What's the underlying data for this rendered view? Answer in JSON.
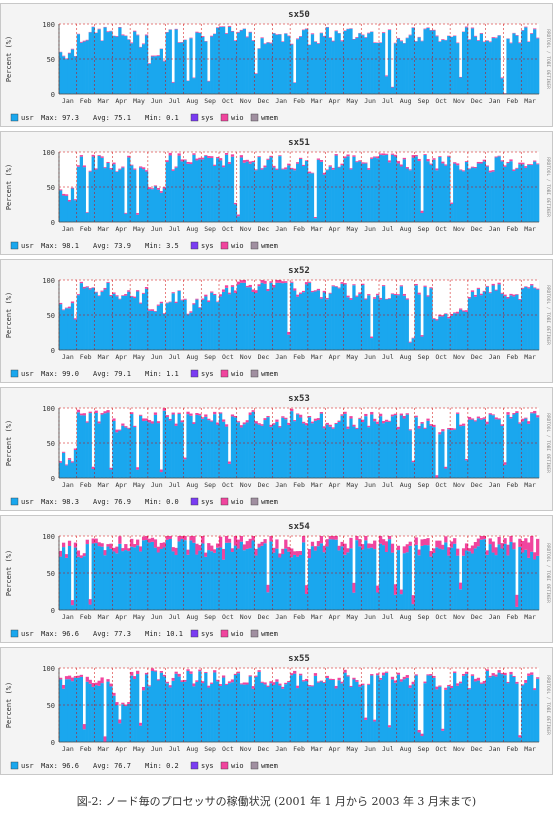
{
  "caption": "図-2: ノード毎のプロセッサの稼働状況 (2001 年 1 月から 2003 年 3 月末まで)",
  "colors": {
    "usr": "#1aa7ee",
    "sys": "#7a3cf2",
    "wio": "#f0459e",
    "wmem": "#a08fa0",
    "grid": "#c0c0c0",
    "ref": "#d00000"
  },
  "icons": {
    "rrdtool_tag": "RRDTOOL / TOBI OETIKER"
  },
  "chart_data": [
    {
      "type": "area",
      "title": "sx50",
      "ylabel": "Percent (%)",
      "ylim": [
        0,
        100
      ],
      "yticks": [
        0,
        50,
        100
      ],
      "months": [
        "Jan",
        "Feb",
        "Mar",
        "Apr",
        "May",
        "Jun",
        "Jul",
        "Aug",
        "Sep",
        "Oct",
        "Nov",
        "Dec",
        "Jan",
        "Feb",
        "Mar",
        "Apr",
        "May",
        "Jun",
        "Jul",
        "Aug",
        "Sep",
        "Oct",
        "Nov",
        "Dec",
        "Jan",
        "Feb",
        "Mar"
      ],
      "usr_monthly": [
        60,
        84,
        86,
        84,
        78,
        55,
        84,
        82,
        85,
        86,
        84,
        76,
        85,
        82,
        80,
        84,
        84,
        85,
        83,
        84,
        85,
        84,
        84,
        84,
        86,
        84,
        86
      ],
      "wio_monthly": [
        1,
        1,
        1,
        1,
        1,
        1,
        1,
        1,
        1,
        1,
        1,
        1,
        1,
        1,
        1,
        1,
        1,
        1,
        1,
        1,
        1,
        1,
        1,
        1,
        1,
        1,
        1
      ],
      "legend": [
        {
          "key": "usr",
          "label": "usr"
        },
        {
          "key": "sys",
          "label": "sys"
        },
        {
          "key": "wio",
          "label": "wio"
        },
        {
          "key": "wmem",
          "label": "wmem"
        }
      ],
      "stats": {
        "max": "Max: 97.3",
        "avg": "Avg: 75.1",
        "min": "Min: 0.1"
      }
    },
    {
      "type": "area",
      "title": "sx51",
      "ylabel": "Percent (%)",
      "ylim": [
        0,
        100
      ],
      "yticks": [
        0,
        50,
        100
      ],
      "months": [
        "Jan",
        "Feb",
        "Mar",
        "Apr",
        "May",
        "Jun",
        "Jul",
        "Aug",
        "Sep",
        "Oct",
        "Nov",
        "Dec",
        "Jan",
        "Feb",
        "Mar",
        "Apr",
        "May",
        "Jun",
        "Jul",
        "Aug",
        "Sep",
        "Oct",
        "Nov",
        "Dec",
        "Jan",
        "Feb",
        "Mar"
      ],
      "usr_monthly": [
        40,
        82,
        84,
        82,
        80,
        50,
        85,
        86,
        88,
        89,
        87,
        82,
        84,
        82,
        78,
        84,
        84,
        85,
        86,
        85,
        86,
        84,
        83,
        82,
        82,
        80,
        84
      ],
      "wio_monthly": [
        2,
        2,
        2,
        2,
        2,
        2,
        3,
        3,
        3,
        3,
        3,
        2,
        2,
        2,
        2,
        2,
        2,
        2,
        3,
        3,
        3,
        2,
        2,
        2,
        2,
        2,
        2
      ],
      "legend": [
        {
          "key": "usr",
          "label": "usr"
        },
        {
          "key": "sys",
          "label": "sys"
        },
        {
          "key": "wio",
          "label": "wio"
        },
        {
          "key": "wmem",
          "label": "wmem"
        }
      ],
      "stats": {
        "max": "Max: 98.1",
        "avg": "Avg: 73.9",
        "min": "Min: 3.5"
      }
    },
    {
      "type": "area",
      "title": "sx52",
      "ylabel": "Percent (%)",
      "ylim": [
        0,
        100
      ],
      "yticks": [
        0,
        50,
        100
      ],
      "months": [
        "Jan",
        "Feb",
        "Mar",
        "Apr",
        "May",
        "Jun",
        "Jul",
        "Aug",
        "Sep",
        "Oct",
        "Nov",
        "Dec",
        "Jan",
        "Feb",
        "Mar",
        "Apr",
        "May",
        "Jun",
        "Jul",
        "Aug",
        "Sep",
        "Oct",
        "Nov",
        "Dec",
        "Jan",
        "Feb",
        "Mar"
      ],
      "usr_monthly": [
        55,
        86,
        86,
        82,
        78,
        60,
        75,
        62,
        70,
        85,
        90,
        92,
        92,
        88,
        85,
        84,
        82,
        84,
        83,
        82,
        84,
        40,
        50,
        82,
        84,
        82,
        82
      ],
      "wio_monthly": [
        2,
        2,
        2,
        2,
        2,
        2,
        2,
        2,
        2,
        3,
        4,
        4,
        4,
        3,
        2,
        2,
        2,
        2,
        2,
        2,
        2,
        2,
        2,
        2,
        2,
        2,
        2
      ],
      "legend": [
        {
          "key": "usr",
          "label": "usr"
        },
        {
          "key": "sys",
          "label": "sys"
        },
        {
          "key": "wio",
          "label": "wio"
        },
        {
          "key": "wmem",
          "label": "wmem"
        }
      ],
      "stats": {
        "max": "Max: 99.0",
        "avg": "Avg: 79.1",
        "min": "Min: 1.1"
      }
    },
    {
      "type": "area",
      "title": "sx53",
      "ylabel": "Percent (%)",
      "ylim": [
        0,
        100
      ],
      "yticks": [
        0,
        50,
        100
      ],
      "months": [
        "Jan",
        "Feb",
        "Mar",
        "Apr",
        "May",
        "Jun",
        "Jul",
        "Aug",
        "Sep",
        "Oct",
        "Nov",
        "Dec",
        "Jan",
        "Feb",
        "Mar",
        "Apr",
        "May",
        "Jun",
        "Jul",
        "Aug",
        "Sep",
        "Oct",
        "Nov",
        "Dec",
        "Jan",
        "Feb",
        "Mar"
      ],
      "usr_monthly": [
        30,
        82,
        88,
        70,
        82,
        85,
        84,
        85,
        84,
        82,
        84,
        83,
        84,
        84,
        82,
        80,
        82,
        83,
        82,
        80,
        80,
        70,
        80,
        82,
        84,
        84,
        86
      ],
      "wio_monthly": [
        2,
        3,
        3,
        3,
        3,
        3,
        3,
        3,
        3,
        3,
        3,
        3,
        3,
        3,
        3,
        3,
        3,
        3,
        3,
        3,
        3,
        3,
        3,
        3,
        3,
        3,
        3
      ],
      "legend": [
        {
          "key": "usr",
          "label": "usr"
        },
        {
          "key": "sys",
          "label": "sys"
        },
        {
          "key": "wio",
          "label": "wio"
        },
        {
          "key": "wmem",
          "label": "wmem"
        }
      ],
      "stats": {
        "max": "Max: 98.3",
        "avg": "Avg: 76.9",
        "min": "Min: 0.0"
      }
    },
    {
      "type": "area",
      "title": "sx54",
      "ylabel": "Percent (%)",
      "ylim": [
        0,
        100
      ],
      "yticks": [
        0,
        50,
        100
      ],
      "months": [
        "Jan",
        "Feb",
        "Mar",
        "Apr",
        "May",
        "Jun",
        "Jul",
        "Aug",
        "Sep",
        "Oct",
        "Nov",
        "Dec",
        "Jan",
        "Feb",
        "Mar",
        "Apr",
        "May",
        "Jun",
        "Jul",
        "Aug",
        "Sep",
        "Oct",
        "Nov",
        "Dec",
        "Jan",
        "Feb",
        "Mar"
      ],
      "usr_monthly": [
        75,
        82,
        80,
        84,
        84,
        85,
        86,
        85,
        82,
        80,
        84,
        82,
        82,
        80,
        82,
        84,
        85,
        84,
        86,
        84,
        82,
        84,
        82,
        84,
        84,
        82,
        70
      ],
      "wio_monthly": [
        6,
        8,
        6,
        8,
        10,
        10,
        12,
        12,
        12,
        12,
        10,
        8,
        10,
        10,
        10,
        12,
        12,
        10,
        12,
        10,
        10,
        10,
        8,
        10,
        12,
        14,
        18
      ],
      "legend": [
        {
          "key": "usr",
          "label": "usr"
        },
        {
          "key": "sys",
          "label": "sys"
        },
        {
          "key": "wio",
          "label": "wio"
        },
        {
          "key": "wmem",
          "label": "wmem"
        }
      ],
      "stats": {
        "max": "Max: 96.6",
        "avg": "Avg: 77.3",
        "min": "Min: 10.1"
      }
    },
    {
      "type": "area",
      "title": "sx55",
      "ylabel": "Percent (%)",
      "ylim": [
        0,
        100
      ],
      "yticks": [
        0,
        50,
        100
      ],
      "months": [
        "Jan",
        "Feb",
        "Mar",
        "Apr",
        "May",
        "Jun",
        "Jul",
        "Aug",
        "Sep",
        "Oct",
        "Nov",
        "Dec",
        "Jan",
        "Feb",
        "Mar",
        "Apr",
        "May",
        "Jun",
        "Jul",
        "Aug",
        "Sep",
        "Oct",
        "Nov",
        "Dec",
        "Jan",
        "Feb",
        "Mar"
      ],
      "usr_monthly": [
        82,
        84,
        82,
        60,
        80,
        84,
        85,
        86,
        85,
        84,
        82,
        84,
        82,
        82,
        80,
        82,
        82,
        84,
        83,
        82,
        84,
        82,
        84,
        82,
        84,
        82,
        80
      ],
      "wio_monthly": [
        4,
        6,
        6,
        4,
        4,
        3,
        3,
        3,
        3,
        3,
        3,
        3,
        3,
        3,
        3,
        3,
        3,
        3,
        3,
        3,
        3,
        3,
        3,
        3,
        3,
        3,
        3
      ],
      "legend": [
        {
          "key": "usr",
          "label": "usr"
        },
        {
          "key": "sys",
          "label": "sys"
        },
        {
          "key": "wio",
          "label": "wio"
        },
        {
          "key": "wmem",
          "label": "wmem"
        }
      ],
      "stats": {
        "max": "Max: 96.6",
        "avg": "Avg: 76.7",
        "min": "Min: 0.2"
      }
    }
  ]
}
